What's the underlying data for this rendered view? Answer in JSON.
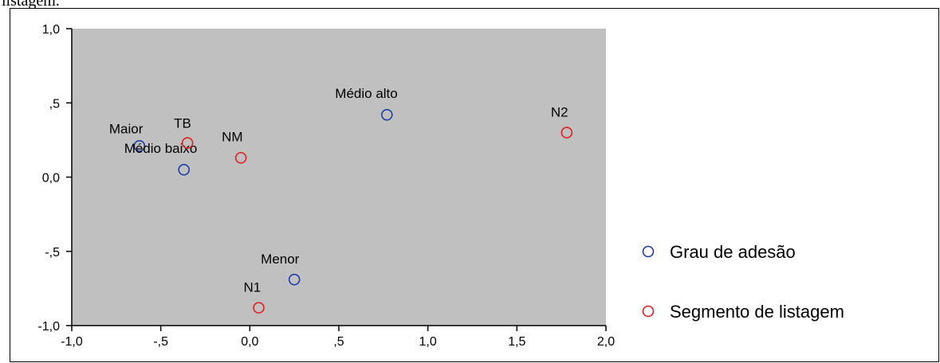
{
  "top_caption": "listagem.",
  "chart_data": {
    "type": "scatter",
    "xlim": [
      -1.0,
      2.0
    ],
    "ylim": [
      -1.0,
      1.0
    ],
    "xticks": [
      -1.0,
      -0.5,
      0.0,
      0.5,
      1.0,
      1.5,
      2.0
    ],
    "xtick_labels": [
      "-1,0",
      "-,5",
      "0,0",
      ",5",
      "1,0",
      "1,5",
      "2,0"
    ],
    "yticks": [
      1.0,
      0.5,
      0.0,
      -0.5,
      -1.0
    ],
    "ytick_labels": [
      "1,0",
      ",5",
      "0,0",
      "-,5",
      "-1,0"
    ],
    "grid": false,
    "plot_background": "#c0c0c0",
    "legend_position": "right",
    "series": [
      {
        "name": "Grau de adesão",
        "color": "#1f3fa8",
        "points": [
          {
            "label": "Maior",
            "x": -0.62,
            "y": 0.21
          },
          {
            "label": "Médio baixo",
            "x": -0.37,
            "y": 0.05
          },
          {
            "label": "Médio alto",
            "x": 0.77,
            "y": 0.42
          },
          {
            "label": "Menor",
            "x": 0.25,
            "y": -0.69
          }
        ]
      },
      {
        "name": "Segmento de listagem",
        "color": "#e02020",
        "points": [
          {
            "label": "TB",
            "x": -0.35,
            "y": 0.23
          },
          {
            "label": "NM",
            "x": -0.05,
            "y": 0.13
          },
          {
            "label": "N2",
            "x": 1.78,
            "y": 0.3
          },
          {
            "label": "N1",
            "x": 0.05,
            "y": -0.88
          }
        ]
      }
    ]
  }
}
